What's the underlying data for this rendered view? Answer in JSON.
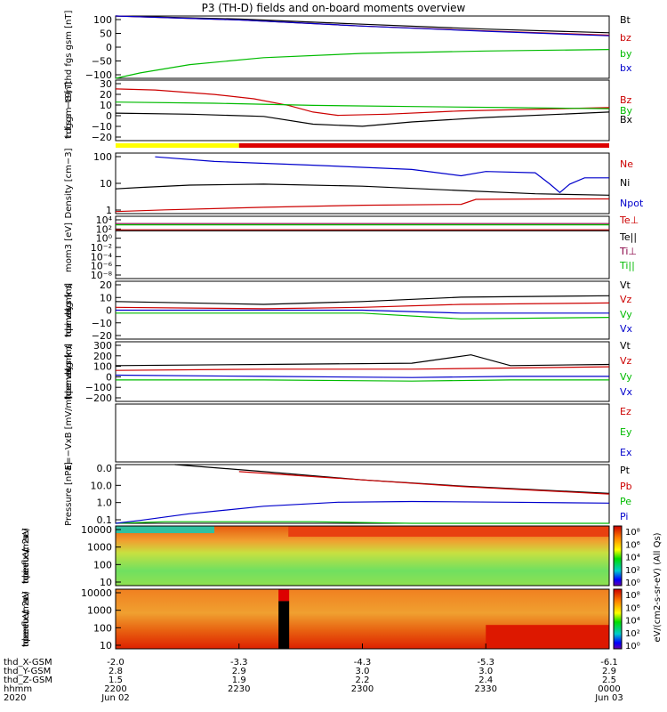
{
  "title": "P3 (TH-D) fields and on-board moments overview",
  "chart_data": [
    {
      "type": "line",
      "ylabel": "thd fgs gsm [nT]",
      "yticks": [
        "100",
        "50",
        "0",
        "−50",
        "−100"
      ],
      "ylim": [
        -100,
        105
      ],
      "legend": [
        "Bt",
        "bz",
        "by",
        "bx"
      ],
      "legend_colors": [
        "#000000",
        "#cc0000",
        "#00bb00",
        "#0000cc"
      ],
      "series": [
        {
          "name": "Bt",
          "color": "#000000",
          "x": [
            0,
            0.25,
            0.5,
            0.75,
            1
          ],
          "y": [
            120,
            95,
            78,
            62,
            50
          ]
        },
        {
          "name": "bz",
          "color": "#cc0000",
          "x": [
            0,
            0.25,
            0.5,
            0.75,
            1
          ],
          "y": [
            118,
            92,
            72,
            56,
            42
          ]
        },
        {
          "name": "by",
          "color": "#00bb00",
          "x": [
            0,
            0.05,
            0.15,
            0.3,
            0.5,
            0.75,
            1
          ],
          "y": [
            -100,
            -82,
            -55,
            -32,
            -18,
            -10,
            -5
          ]
        },
        {
          "name": "bx",
          "color": "#0000cc",
          "x": [
            0,
            0.25,
            0.5,
            0.75,
            1
          ],
          "y": [
            115,
            92,
            72,
            55,
            40
          ]
        }
      ]
    },
    {
      "type": "line",
      "ylabel": "thd fgs gsm − t89 [nT]",
      "yticks": [
        "30",
        "20",
        "10",
        "0",
        "−10",
        "−20"
      ],
      "ylim": [
        -25,
        30
      ],
      "legend": [
        "Bz",
        "By",
        "Bx"
      ],
      "legend_colors": [
        "#cc0000",
        "#00bb00",
        "#000000"
      ],
      "series": [
        {
          "name": "Bz",
          "color": "#cc0000",
          "x": [
            0,
            0.08,
            0.2,
            0.28,
            0.35,
            0.4,
            0.45,
            0.55,
            0.7,
            1
          ],
          "y": [
            22,
            21,
            17,
            13,
            7,
            1,
            -2,
            -1,
            2,
            5
          ]
        },
        {
          "name": "By",
          "color": "#00bb00",
          "x": [
            0,
            0.2,
            0.4,
            0.6,
            0.8,
            1
          ],
          "y": [
            10,
            9,
            7,
            6,
            5,
            4
          ]
        },
        {
          "name": "Bx",
          "color": "#000000",
          "x": [
            0,
            0.15,
            0.3,
            0.4,
            0.5,
            0.6,
            0.75,
            1
          ],
          "y": [
            0,
            -1,
            -3,
            -10,
            -12,
            -8,
            -4,
            1
          ]
        }
      ]
    },
    {
      "type": "line",
      "ylabel": "Density [cm−3]",
      "log": true,
      "yticks": [
        "100",
        "10",
        "1"
      ],
      "ylim": [
        0.4,
        300
      ],
      "legend": [
        "Ne",
        "Ni",
        "Npot"
      ],
      "legend_colors": [
        "#cc0000",
        "#000000",
        "#0000cc"
      ],
      "series": [
        {
          "name": "Ne",
          "color": "#cc0000",
          "x": [
            0,
            0.1,
            0.3,
            0.5,
            0.7,
            0.73,
            0.9,
            1
          ],
          "y": [
            0.5,
            0.6,
            0.8,
            1.0,
            1.1,
            1.9,
            2.0,
            2.0
          ]
        },
        {
          "name": "Ni",
          "color": "#000000",
          "x": [
            0,
            0.05,
            0.15,
            0.3,
            0.5,
            0.7,
            0.85,
            1
          ],
          "y": [
            6,
            7,
            9,
            10,
            8,
            5,
            3.5,
            3
          ]
        },
        {
          "name": "Npot",
          "color": "#0000cc",
          "x": [
            0.08,
            0.2,
            0.4,
            0.6,
            0.7,
            0.75,
            0.85,
            0.88,
            0.9,
            0.92,
            0.95,
            1
          ],
          "y": [
            200,
            120,
            80,
            50,
            25,
            40,
            35,
            10,
            4,
            10,
            20,
            20
          ]
        }
      ]
    },
    {
      "type": "line",
      "ylabel": "mom3 [eV]",
      "log": true,
      "yticks": [
        "10⁴",
        "10²",
        "10⁰",
        "10⁻²",
        "10⁻⁴",
        "10⁻⁶",
        "10⁻⁸"
      ],
      "legend": [
        "Te⊥",
        "Te||",
        "Ti⊥",
        "Ti||"
      ],
      "legend_colors": [
        "#cc0000",
        "#000000",
        "#880044",
        "#00bb00"
      ],
      "series": [
        {
          "name": "Te⊥",
          "color": "#cc0000",
          "x": [
            0,
            1
          ],
          "y": [
            500,
            500
          ]
        },
        {
          "name": "Te||",
          "color": "#000000",
          "x": [
            0,
            1
          ],
          "y": [
            400,
            400
          ]
        },
        {
          "name": "Ti⊥",
          "color": "#880044",
          "x": [
            0,
            1
          ],
          "y": [
            2000,
            2000
          ]
        },
        {
          "name": "Ti||",
          "color": "#00bb00",
          "x": [
            0,
            1
          ],
          "y": [
            1500,
            1500
          ]
        }
      ]
    },
    {
      "type": "line",
      "ylabel": "thd peim velocity gsm [km/s]",
      "yticks": [
        "20",
        "10",
        "0",
        "−10",
        "−20"
      ],
      "ylim": [
        -20,
        20
      ],
      "legend": [
        "Vt",
        "Vz",
        "Vy",
        "Vx"
      ],
      "legend_colors": [
        "#000000",
        "#cc0000",
        "#00bb00",
        "#0000cc"
      ],
      "series": [
        {
          "name": "Vt",
          "color": "#000000",
          "x": [
            0,
            0.3,
            0.5,
            0.7,
            1
          ],
          "y": [
            6,
            4,
            6,
            9,
            10
          ]
        },
        {
          "name": "Vz",
          "color": "#cc0000",
          "x": [
            0,
            0.3,
            0.5,
            0.7,
            1
          ],
          "y": [
            2,
            1,
            2,
            4,
            5
          ]
        },
        {
          "name": "Vy",
          "color": "#00bb00",
          "x": [
            0,
            0.3,
            0.5,
            0.7,
            1
          ],
          "y": [
            -2,
            -2,
            -2,
            -6,
            -5
          ]
        },
        {
          "name": "Vx",
          "color": "#0000cc",
          "x": [
            0,
            0.3,
            0.5,
            0.7,
            1
          ],
          "y": [
            0,
            0,
            0,
            -2,
            -2
          ]
        }
      ]
    },
    {
      "type": "line",
      "ylabel": "thd peem velocity gsm [km/s]",
      "yticks": [
        "300",
        "200",
        "100",
        "0",
        "−100",
        "−200"
      ],
      "ylim": [
        -200,
        300
      ],
      "legend": [
        "Vt",
        "Vz",
        "Vy",
        "Vx"
      ],
      "legend_colors": [
        "#000000",
        "#cc0000",
        "#00bb00",
        "#0000cc"
      ],
      "series": [
        {
          "name": "Vt",
          "color": "#000000",
          "x": [
            0,
            0.3,
            0.6,
            0.72,
            0.8,
            1
          ],
          "y": [
            100,
            110,
            120,
            190,
            100,
            110
          ]
        },
        {
          "name": "Vz",
          "color": "#cc0000",
          "x": [
            0,
            0.3,
            0.6,
            0.8,
            1
          ],
          "y": [
            60,
            70,
            70,
            80,
            90
          ]
        },
        {
          "name": "Vy",
          "color": "#00bb00",
          "x": [
            0,
            0.3,
            0.6,
            0.8,
            1
          ],
          "y": [
            -20,
            -20,
            -30,
            -20,
            -20
          ]
        },
        {
          "name": "Vx",
          "color": "#0000cc",
          "x": [
            0,
            0.3,
            0.6,
            0.8,
            1
          ],
          "y": [
            20,
            10,
            0,
            10,
            10
          ]
        }
      ]
    },
    {
      "type": "line",
      "ylabel": "E=−VxB [mV/m]",
      "yticks": [],
      "legend": [
        "Ez",
        "Ey",
        "Ex"
      ],
      "legend_colors": [
        "#cc0000",
        "#00bb00",
        "#0000cc"
      ],
      "series": []
    },
    {
      "type": "line",
      "ylabel": "Pressure [nPa]",
      "log": true,
      "yticks": [
        "0.0",
        "10.0",
        "1.0",
        "0.1"
      ],
      "ylim": [
        0.05,
        40
      ],
      "legend": [
        "Pt",
        "Pb",
        "Pe",
        "Pi"
      ],
      "legend_colors": [
        "#000000",
        "#cc0000",
        "#00bb00",
        "#0000cc"
      ],
      "series": [
        {
          "name": "Pt",
          "color": "#000000",
          "x": [
            0.12,
            0.3,
            0.5,
            0.7,
            1
          ],
          "y": [
            40,
            18,
            7,
            3.5,
            1.5
          ]
        },
        {
          "name": "Pb",
          "color": "#cc0000",
          "x": [
            0.25,
            0.5,
            0.7,
            1
          ],
          "y": [
            18,
            7,
            3.3,
            1.4
          ]
        },
        {
          "name": "Pe",
          "color": "#00bb00",
          "x": [
            0,
            0.1,
            0.3,
            0.4,
            0.6,
            0.8,
            1
          ],
          "y": [
            0.05,
            0.06,
            0.06,
            0.06,
            0.05,
            0.05,
            0.05
          ]
        },
        {
          "name": "Pi",
          "color": "#0000cc",
          "x": [
            0,
            0.05,
            0.15,
            0.3,
            0.45,
            0.6,
            0.8,
            1
          ],
          "y": [
            0.05,
            0.07,
            0.15,
            0.35,
            0.55,
            0.6,
            0.55,
            0.5
          ]
        }
      ]
    },
    {
      "type": "heatmap",
      "ylabel": "thd peir en eflux eV/(cm2-s-sr-eV)",
      "yticks": [
        "10000",
        "1000",
        "100",
        "10"
      ],
      "ylim": [
        5,
        20000
      ],
      "log": true
    },
    {
      "type": "heatmap",
      "ylabel": "thd peer en eflux eV/(cm2-s-sr-eV)",
      "yticks": [
        "10000",
        "1000",
        "100",
        "10"
      ],
      "ylim": [
        5,
        20000
      ],
      "log": true
    }
  ],
  "colorbar": {
    "label": "eV/(cm2-s-sr-eV) (All Qs)",
    "ticks_top": [
      "10⁸",
      "10⁶",
      "10⁴",
      "10²",
      "10⁰"
    ],
    "ticks_bottom": [
      "10⁸",
      "10⁶",
      "10⁴",
      "10²",
      "10⁰"
    ]
  },
  "status_bar": {
    "colors": [
      "#ffff00",
      "#dd0000"
    ],
    "split": 0.25
  },
  "xaxis": {
    "row_labels": [
      "thd_X-GSM",
      "thd_Y-GSM",
      "thd_Z-GSM",
      "hhmm",
      "2020"
    ],
    "columns": [
      [
        "-2.0",
        "2.8",
        "1.5",
        "2200",
        "Jun 02"
      ],
      [
        "-3.3",
        "2.9",
        "1.9",
        "2230",
        ""
      ],
      [
        "-4.3",
        "3.0",
        "2.2",
        "2300",
        ""
      ],
      [
        "-5.3",
        "3.0",
        "2.4",
        "2330",
        ""
      ],
      [
        "-6.1",
        "2.9",
        "2.5",
        "0000",
        "Jun 03"
      ]
    ]
  }
}
